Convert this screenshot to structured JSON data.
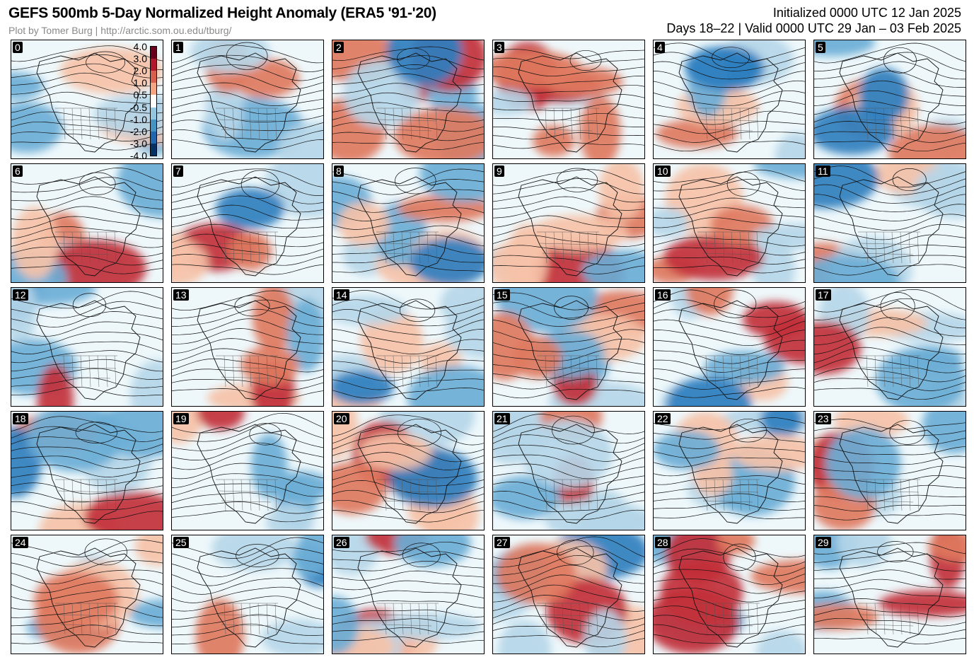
{
  "header": {
    "title": "GEFS 500mb 5-Day Normalized Height Anomaly (ERA5 '91-'20)",
    "credit": "Plot by Tomer Burg | http://arctic.som.ou.edu/tburg/",
    "initialized": "Initialized 0000 UTC 12 Jan 2025",
    "valid": "Days 18–22 | Valid 0000 UTC 29 Jan – 03 Feb 2025"
  },
  "colorbar": {
    "ticks": [
      "4.0",
      "3.0",
      "2.0",
      "1.0",
      "0.5",
      "-0.5",
      "-1.0",
      "-2.0",
      "-3.0",
      "-4.0"
    ],
    "colors": [
      "#67001f",
      "#b2182b",
      "#d6604d",
      "#f4a582",
      "#ffffff",
      "#92c5de",
      "#4393c3",
      "#2166ac",
      "#053061"
    ]
  },
  "palette": {
    "pos_strong": "#c2303a",
    "pos_mid": "#e07a5f",
    "pos_weak": "#f6c2a8",
    "neg_weak": "#b5d6e8",
    "neg_mid": "#6baed6",
    "neg_strong": "#2f7fbf",
    "background": "#eef8fb"
  },
  "members": [
    "0",
    "1",
    "2",
    "3",
    "4",
    "5",
    "6",
    "7",
    "8",
    "9",
    "10",
    "11",
    "12",
    "13",
    "14",
    "15",
    "16",
    "17",
    "18",
    "19",
    "20",
    "21",
    "22",
    "23",
    "24",
    "25",
    "26",
    "27",
    "28",
    "29"
  ]
}
